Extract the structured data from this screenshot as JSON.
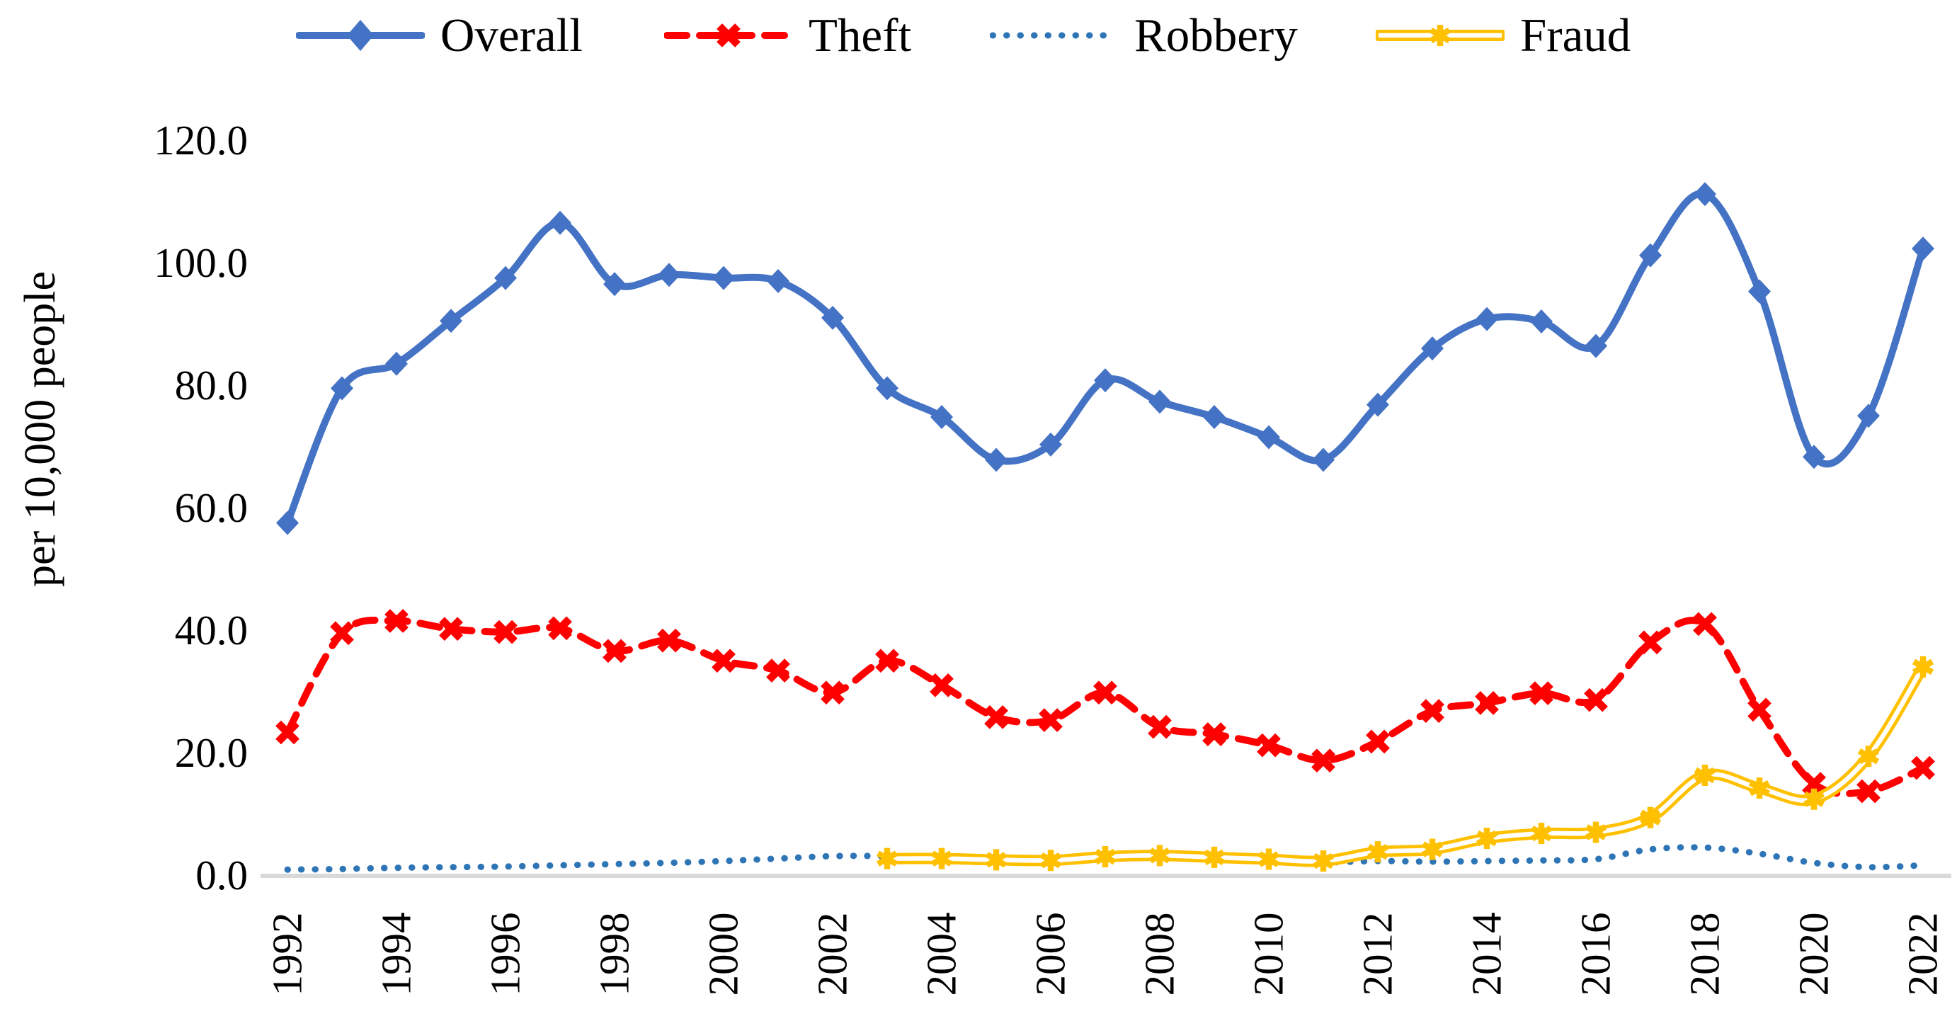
{
  "chart_data": {
    "type": "line",
    "title": "",
    "ylabel": "per 10,000 people",
    "xlabel": "",
    "grid": false,
    "legend_position": "top",
    "ylim": [
      0,
      120
    ],
    "y_tick_labels": [
      "0.0",
      "20.0",
      "40.0",
      "60.0",
      "80.0",
      "100.0",
      "120.0"
    ],
    "x": [
      1992,
      1993,
      1994,
      1995,
      1996,
      1997,
      1998,
      1999,
      2000,
      2001,
      2002,
      2003,
      2004,
      2005,
      2006,
      2007,
      2008,
      2009,
      2010,
      2011,
      2012,
      2013,
      2014,
      2015,
      2016,
      2017,
      2018,
      2019,
      2020,
      2021,
      2022
    ],
    "x_tick_labels": [
      "1992",
      "1994",
      "1996",
      "1998",
      "2000",
      "2002",
      "2004",
      "2006",
      "2008",
      "2010",
      "2012",
      "2014",
      "2016",
      "2018",
      "2020",
      "2022"
    ],
    "axis_line_color": "#d9d9d9",
    "series": [
      {
        "name": "Overall",
        "color": "#4472c4",
        "line_style": "solid",
        "marker": "diamond",
        "values": [
          57.5,
          79.5,
          83.5,
          90.5,
          97.5,
          106.5,
          96.5,
          98.0,
          97.5,
          97.0,
          91.0,
          79.5,
          74.8,
          67.8,
          70.3,
          80.8,
          77.3,
          74.8,
          71.5,
          67.8,
          76.8,
          86.0,
          90.8,
          90.4,
          86.4,
          101.2,
          111.2,
          95.3,
          68.3,
          75.0,
          102.3
        ]
      },
      {
        "name": "Theft",
        "color": "#ff0000",
        "line_style": "dashed",
        "marker": "x",
        "values": [
          23.3,
          39.5,
          41.5,
          40.2,
          39.7,
          40.3,
          36.6,
          38.3,
          35.0,
          33.4,
          29.8,
          35.0,
          31.0,
          25.8,
          25.3,
          29.8,
          24.2,
          23.0,
          21.2,
          18.7,
          21.8,
          26.8,
          28.1,
          29.7,
          28.6,
          38.0,
          41.0,
          27.0,
          14.9,
          13.7,
          17.5
        ]
      },
      {
        "name": "Robbery",
        "color": "#2e75b6",
        "line_style": "dotted",
        "marker": "none",
        "values": [
          0.9,
          1.0,
          1.2,
          1.3,
          1.4,
          1.6,
          1.8,
          2.0,
          2.3,
          2.7,
          3.1,
          3.1,
          2.9,
          2.6,
          2.4,
          3.0,
          3.2,
          2.9,
          2.5,
          2.1,
          2.3,
          2.2,
          2.3,
          2.4,
          2.6,
          4.2,
          4.5,
          3.5,
          2.0,
          1.3,
          1.6
        ]
      },
      {
        "name": "Fraud",
        "color": "#ffc000",
        "line_style": "double",
        "marker": "star",
        "values": [
          null,
          null,
          null,
          null,
          null,
          null,
          null,
          null,
          null,
          null,
          null,
          2.7,
          2.7,
          2.5,
          2.4,
          3.0,
          3.2,
          2.9,
          2.6,
          2.3,
          3.8,
          4.2,
          6.0,
          6.8,
          7.0,
          9.4,
          16.3,
          14.2,
          12.4,
          19.4,
          34.0
        ]
      }
    ]
  }
}
